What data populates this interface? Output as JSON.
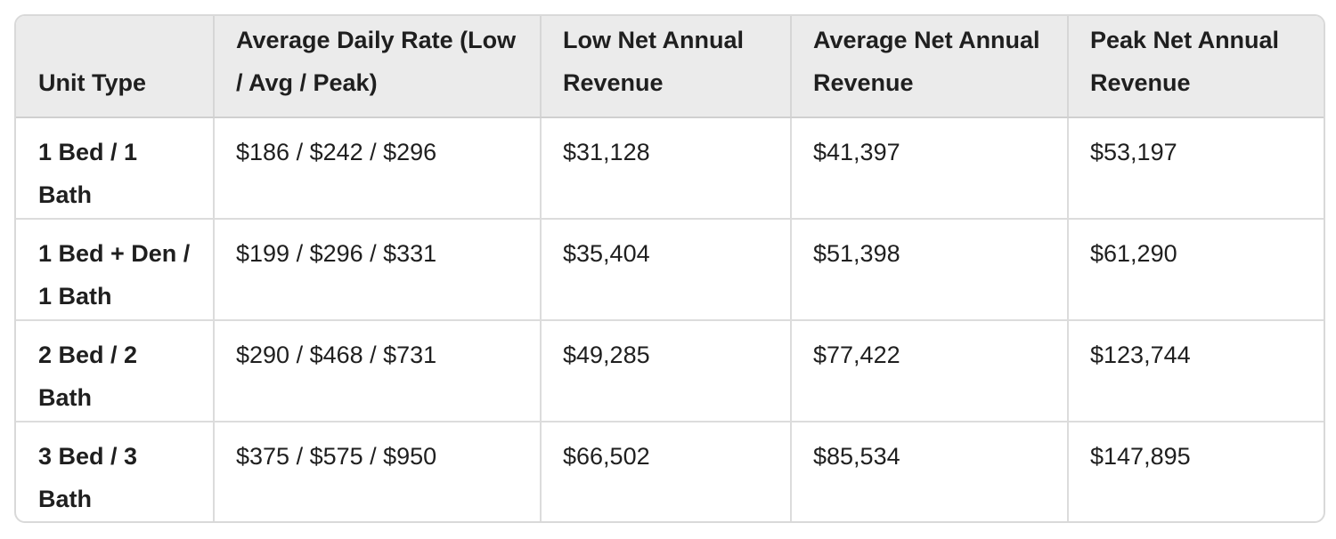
{
  "table": {
    "headers": [
      "Unit Type",
      "Average Daily Rate (Low / Avg / Peak)",
      "Low Net Annual Revenue",
      "Average Net Annual Revenue",
      "Peak Net Annual Revenue"
    ],
    "rows": [
      [
        "1 Bed / 1 Bath",
        "$186 / $242 / $296",
        "$31,128",
        "$41,397",
        "$53,197"
      ],
      [
        "1 Bed + Den / 1 Bath",
        "$199 / $296 / $331",
        "$35,404",
        "$51,398",
        "$61,290"
      ],
      [
        "2 Bed / 2 Bath",
        "$290 / $468 / $731",
        "$49,285",
        "$77,422",
        "$123,744"
      ],
      [
        "3 Bed / 3 Bath",
        "$375 / $575 / $950",
        "$66,502",
        "$85,534",
        "$147,895"
      ]
    ]
  }
}
